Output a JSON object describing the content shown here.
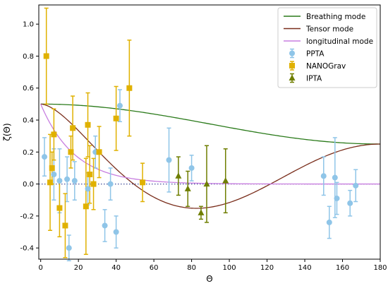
{
  "chart_data": {
    "type": "scatter",
    "xlabel": "Θ",
    "ylabel": "ζ(Θ)",
    "xlim": [
      -1,
      180
    ],
    "ylim": [
      -0.47,
      1.12
    ],
    "xticks": [
      0,
      20,
      40,
      60,
      80,
      100,
      120,
      140,
      160,
      180
    ],
    "yticks": [
      -0.4,
      -0.2,
      0.0,
      0.2,
      0.4,
      0.6,
      0.8,
      1.0
    ],
    "grid": false,
    "legend_position": "top-right",
    "curves": [
      {
        "name": "Breathing mode",
        "color": "#2a7a1a",
        "model": "breathing"
      },
      {
        "name": "Tensor mode",
        "color": "#7a2e1c",
        "model": "tensor"
      },
      {
        "name": "longitudinal mode",
        "color": "#c77ee0",
        "model": "longitudinal"
      }
    ],
    "reference_lines": [
      {
        "y": 0.0,
        "color": "#7a2e1c",
        "style": "dotted"
      },
      {
        "y": 0.0,
        "color": "#2a46a8",
        "style": "dotted"
      }
    ],
    "series": [
      {
        "name": "PPTA",
        "color": "#8fc5e8",
        "marker": "circle",
        "points": [
          {
            "x": 2,
            "y": 0.17,
            "err": 0.12
          },
          {
            "x": 7,
            "y": 0.06,
            "err": 0.16
          },
          {
            "x": 10,
            "y": 0.02,
            "err": 0.2
          },
          {
            "x": 14,
            "y": 0.03,
            "err": 0.14
          },
          {
            "x": 15,
            "y": -0.4,
            "err": 0.08
          },
          {
            "x": 18,
            "y": 0.02,
            "err": 0.12
          },
          {
            "x": 25,
            "y": -0.03,
            "err": 0.1
          },
          {
            "x": 29,
            "y": 0.2,
            "err": 0.1
          },
          {
            "x": 34,
            "y": -0.26,
            "err": 0.1
          },
          {
            "x": 37,
            "y": 0.0,
            "err": 0.1
          },
          {
            "x": 40,
            "y": -0.3,
            "err": 0.1
          },
          {
            "x": 42,
            "y": 0.49,
            "err": 0.1
          },
          {
            "x": 68,
            "y": 0.15,
            "err": 0.2
          },
          {
            "x": 80,
            "y": 0.1,
            "err": 0.08
          },
          {
            "x": 150,
            "y": 0.05,
            "err": 0.12
          },
          {
            "x": 153,
            "y": -0.24,
            "err": 0.1
          },
          {
            "x": 156,
            "y": 0.04,
            "err": 0.25
          },
          {
            "x": 157,
            "y": -0.09,
            "err": 0.1
          },
          {
            "x": 164,
            "y": -0.12,
            "err": 0.08
          },
          {
            "x": 167,
            "y": -0.01,
            "err": 0.1
          }
        ]
      },
      {
        "name": "NANOGrav",
        "color": "#e0b100",
        "marker": "square",
        "points": [
          {
            "x": 3,
            "y": 0.8,
            "err": 0.3
          },
          {
            "x": 5,
            "y": 0.01,
            "err": 0.3
          },
          {
            "x": 6,
            "y": 0.1,
            "err": 0.1
          },
          {
            "x": 7,
            "y": 0.31,
            "err": 0.16
          },
          {
            "x": 10,
            "y": -0.15,
            "err": 0.18
          },
          {
            "x": 13,
            "y": -0.26,
            "err": 0.2
          },
          {
            "x": 16,
            "y": 0.2,
            "err": 0.1
          },
          {
            "x": 17,
            "y": 0.35,
            "err": 0.2
          },
          {
            "x": 24,
            "y": -0.14,
            "err": 0.3
          },
          {
            "x": 25,
            "y": 0.37,
            "err": 0.2
          },
          {
            "x": 26,
            "y": 0.06,
            "err": 0.18
          },
          {
            "x": 28,
            "y": 0.0,
            "err": 0.16
          },
          {
            "x": 31,
            "y": 0.2,
            "err": 0.16
          },
          {
            "x": 40,
            "y": 0.41,
            "err": 0.2
          },
          {
            "x": 47,
            "y": 0.6,
            "err": 0.3
          },
          {
            "x": 54,
            "y": 0.01,
            "err": 0.12
          }
        ]
      },
      {
        "name": "IPTA",
        "color": "#6f7e00",
        "marker": "triangle",
        "points": [
          {
            "x": 73,
            "y": 0.05,
            "err": 0.12
          },
          {
            "x": 78,
            "y": -0.03,
            "err": 0.11
          },
          {
            "x": 85,
            "y": -0.18,
            "err": 0.04
          },
          {
            "x": 88,
            "y": 0.0,
            "err": 0.24
          },
          {
            "x": 98,
            "y": 0.02,
            "err": 0.2
          }
        ]
      }
    ]
  }
}
